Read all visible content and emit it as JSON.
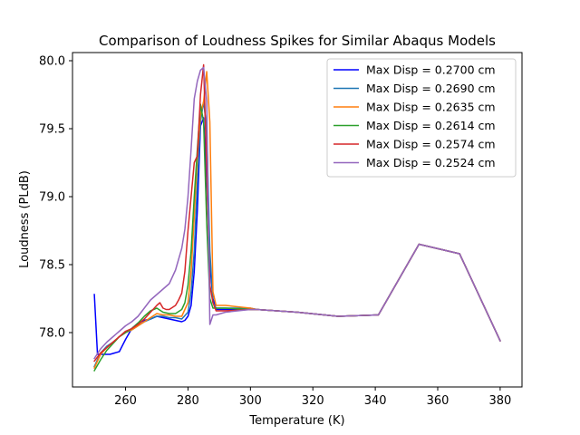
{
  "chart_data": {
    "type": "line",
    "title": "Comparison of Loudness Spikes for Similar Abaqus Models",
    "xlabel": "Temperature (K)",
    "ylabel": "Loudness (PLdB)",
    "xlim": [
      243,
      387
    ],
    "ylim": [
      77.6,
      80.06
    ],
    "xticks": [
      260,
      280,
      300,
      320,
      340,
      360,
      380
    ],
    "yticks": [
      78.0,
      78.5,
      79.0,
      79.5,
      80.0
    ],
    "xtick_labels": [
      "260",
      "280",
      "300",
      "320",
      "340",
      "360",
      "380"
    ],
    "ytick_labels": [
      "78.0",
      "78.5",
      "79.0",
      "79.5",
      "80.0"
    ],
    "grid": false,
    "legend_position": "upper right",
    "series": [
      {
        "name": "Max Disp = 0.2700 cm",
        "color": "#0000ff",
        "x": [
          250,
          251,
          252,
          255,
          258,
          260,
          262,
          264,
          266,
          268,
          270,
          272,
          274,
          276,
          278,
          279,
          280,
          281,
          282,
          283,
          284,
          285,
          286,
          287,
          288,
          289,
          292,
          300,
          302,
          315,
          328,
          341,
          354,
          367,
          380
        ],
        "y": [
          78.28,
          77.84,
          77.84,
          77.84,
          77.86,
          77.95,
          78.03,
          78.07,
          78.09,
          78.1,
          78.12,
          78.11,
          78.1,
          78.09,
          78.08,
          78.09,
          78.12,
          78.2,
          78.45,
          78.9,
          79.52,
          79.58,
          79.1,
          78.5,
          78.25,
          78.17,
          78.17,
          78.17,
          78.17,
          78.15,
          78.12,
          78.13,
          78.65,
          78.58,
          77.94
        ]
      },
      {
        "name": "Max Disp = 0.2690 cm",
        "color": "#1f77b4",
        "x": [
          250,
          252,
          254,
          256,
          258,
          260,
          262,
          264,
          266,
          268,
          270,
          272,
          274,
          276,
          278,
          280,
          281,
          282,
          283,
          284,
          285,
          286,
          287,
          288,
          289,
          292,
          300,
          302,
          315,
          328,
          341,
          354,
          367,
          380
        ],
        "y": [
          77.75,
          77.85,
          77.9,
          77.93,
          77.97,
          78.0,
          78.02,
          78.05,
          78.08,
          78.1,
          78.12,
          78.12,
          78.11,
          78.11,
          78.1,
          78.15,
          78.3,
          78.6,
          79.1,
          79.55,
          79.7,
          79.5,
          78.6,
          78.22,
          78.18,
          78.18,
          78.18,
          78.17,
          78.15,
          78.12,
          78.13,
          78.65,
          78.58,
          77.94
        ]
      },
      {
        "name": "Max Disp = 0.2635 cm",
        "color": "#ff7f0e",
        "x": [
          250,
          252,
          254,
          256,
          258,
          260,
          262,
          264,
          266,
          268,
          270,
          272,
          274,
          276,
          278,
          280,
          281,
          282,
          283,
          284,
          285,
          286,
          287,
          288,
          289,
          292,
          300,
          302,
          315,
          328,
          341,
          354,
          367,
          380
        ],
        "y": [
          77.74,
          77.84,
          77.89,
          77.93,
          77.97,
          78.0,
          78.02,
          78.05,
          78.08,
          78.11,
          78.14,
          78.13,
          78.13,
          78.12,
          78.12,
          78.22,
          78.45,
          78.85,
          79.3,
          79.6,
          79.7,
          79.92,
          79.55,
          78.3,
          78.2,
          78.2,
          78.18,
          78.17,
          78.15,
          78.12,
          78.13,
          78.65,
          78.58,
          77.94
        ]
      },
      {
        "name": "Max Disp = 0.2614 cm",
        "color": "#2ca02c",
        "x": [
          250,
          252,
          254,
          256,
          258,
          260,
          262,
          264,
          266,
          268,
          270,
          272,
          274,
          276,
          278,
          279,
          280,
          281,
          282,
          283,
          284,
          285,
          286,
          287,
          288,
          289,
          292,
          300,
          302,
          315,
          328,
          341,
          354,
          367,
          380
        ],
        "y": [
          77.72,
          77.8,
          77.87,
          77.92,
          77.97,
          78.0,
          78.03,
          78.07,
          78.12,
          78.16,
          78.18,
          78.15,
          78.14,
          78.14,
          78.17,
          78.22,
          78.35,
          78.6,
          79.0,
          79.35,
          79.68,
          79.55,
          78.8,
          78.25,
          78.18,
          78.18,
          78.18,
          78.17,
          78.17,
          78.15,
          78.12,
          78.13,
          78.65,
          78.58,
          77.94
        ]
      },
      {
        "name": "Max Disp = 0.2574 cm",
        "color": "#d62728",
        "x": [
          250,
          252,
          254,
          256,
          258,
          260,
          262,
          264,
          266,
          268,
          270,
          271,
          272,
          273,
          274,
          276,
          277,
          278,
          279,
          280,
          281,
          282,
          283,
          284,
          285,
          286,
          287,
          288,
          289,
          292,
          300,
          302,
          315,
          328,
          341,
          354,
          367,
          380
        ],
        "y": [
          77.79,
          77.85,
          77.89,
          77.93,
          77.97,
          78.01,
          78.03,
          78.06,
          78.1,
          78.15,
          78.2,
          78.22,
          78.18,
          78.17,
          78.17,
          78.2,
          78.24,
          78.29,
          78.45,
          78.75,
          79.0,
          79.25,
          79.3,
          79.75,
          79.97,
          79.2,
          78.35,
          78.22,
          78.16,
          78.16,
          78.17,
          78.17,
          78.15,
          78.12,
          78.13,
          78.65,
          78.58,
          77.94
        ]
      },
      {
        "name": "Max Disp = 0.2524 cm",
        "color": "#9467bd",
        "x": [
          250,
          252,
          254,
          256,
          258,
          260,
          262,
          264,
          266,
          268,
          270,
          272,
          274,
          276,
          278,
          279,
          280,
          281,
          282,
          283,
          284,
          285,
          286,
          287,
          288,
          289,
          292,
          300,
          302,
          315,
          328,
          341,
          354,
          367,
          380
        ],
        "y": [
          77.81,
          77.88,
          77.93,
          77.97,
          78.01,
          78.05,
          78.08,
          78.12,
          78.18,
          78.24,
          78.28,
          78.32,
          78.36,
          78.46,
          78.62,
          78.76,
          79.0,
          79.35,
          79.72,
          79.85,
          79.93,
          79.95,
          79.7,
          78.06,
          78.13,
          78.13,
          78.15,
          78.17,
          78.17,
          78.15,
          78.12,
          78.13,
          78.65,
          78.58,
          77.94
        ]
      }
    ]
  }
}
